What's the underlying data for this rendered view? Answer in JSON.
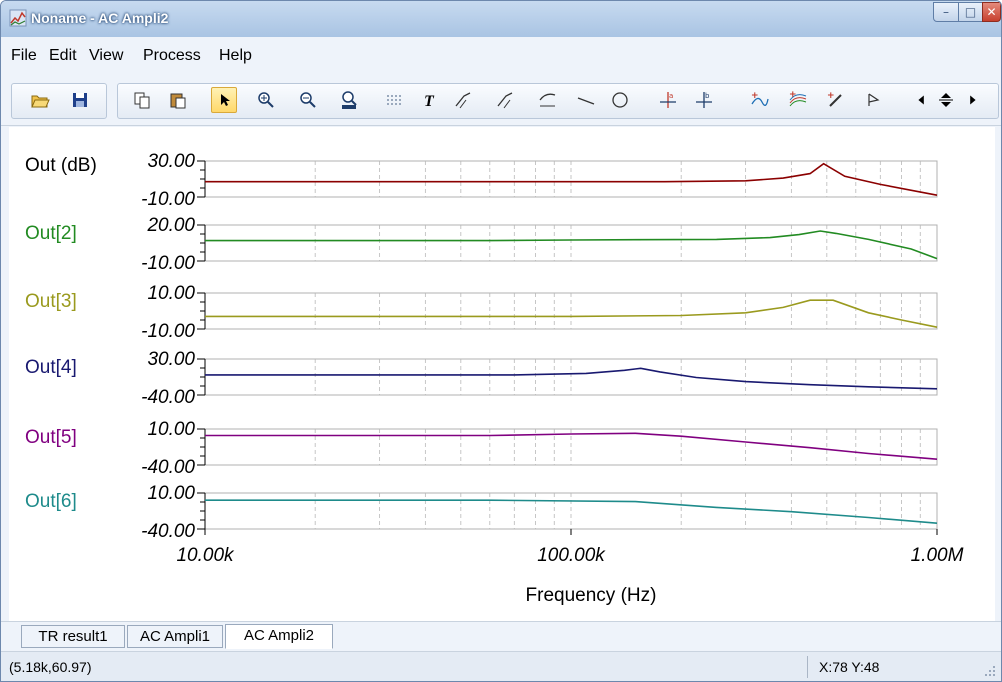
{
  "window": {
    "title": "Noname - AC Ampli2",
    "controls": {
      "minimize": "–",
      "maximize": "□",
      "close": "✕"
    }
  },
  "menu": [
    "File",
    "Edit",
    "View",
    "Process",
    "Help"
  ],
  "toolbar": {
    "buttons": [
      {
        "name": "open-icon"
      },
      {
        "name": "save-icon"
      },
      {
        "name": "copy-icon"
      },
      {
        "name": "paste-icon"
      },
      {
        "name": "select-arrow-icon",
        "active": true
      },
      {
        "name": "zoom-in-icon"
      },
      {
        "name": "zoom-out-icon"
      },
      {
        "name": "zoom-100-icon"
      },
      {
        "name": "grid-icon"
      },
      {
        "name": "text-icon"
      },
      {
        "name": "marker-1-icon"
      },
      {
        "name": "marker-2-icon"
      },
      {
        "name": "marker-3-icon"
      },
      {
        "name": "line-icon"
      },
      {
        "name": "circle-icon"
      },
      {
        "name": "cursor-a-icon"
      },
      {
        "name": "cursor-b-icon"
      },
      {
        "name": "add-trace-icon"
      },
      {
        "name": "add-traces-icon"
      },
      {
        "name": "pen-icon"
      },
      {
        "name": "flag-icon"
      },
      {
        "name": "scroll-left-icon"
      },
      {
        "name": "scroll-updown-icon"
      },
      {
        "name": "scroll-right-icon"
      }
    ]
  },
  "chart_data": {
    "type": "line",
    "xscale": "log",
    "xlim": [
      10000,
      1000000
    ],
    "xticks": [
      "10.00k",
      "100.00k",
      "1.00M"
    ],
    "xlabel": "Frequency (Hz)",
    "panels": [
      {
        "name": "Out (dB)",
        "color": "#8b0000",
        "ymax_label": "30.00",
        "ymin_label": "-10.00",
        "ylim": [
          -10,
          30
        ],
        "x": [
          10000,
          100000,
          180000,
          300000,
          380000,
          450000,
          490000,
          560000,
          700000,
          1000000
        ],
        "y": [
          7,
          7,
          7,
          8,
          11,
          16,
          27,
          13,
          4,
          -8
        ]
      },
      {
        "name": "Out[2]",
        "color": "#228b22",
        "ymax_label": "20.00",
        "ymin_label": "-10.00",
        "ylim": [
          -10,
          20
        ],
        "x": [
          10000,
          60000,
          100000,
          250000,
          350000,
          420000,
          480000,
          530000,
          650000,
          850000,
          1000000
        ],
        "y": [
          7,
          7,
          7.5,
          8,
          9.5,
          12,
          15,
          13,
          8,
          0,
          -8
        ]
      },
      {
        "name": "Out[3]",
        "color": "#9a9a1e",
        "ymax_label": "10.00",
        "ymin_label": "-10.00",
        "ylim": [
          -10,
          10
        ],
        "x": [
          10000,
          100000,
          200000,
          300000,
          380000,
          450000,
          520000,
          650000,
          800000,
          1000000
        ],
        "y": [
          -3,
          -3,
          -2.5,
          -1,
          2,
          6,
          6,
          -1,
          -5,
          -9
        ]
      },
      {
        "name": "Out[4]",
        "color": "#191970",
        "ymax_label": "30.00",
        "ymin_label": "-40.00",
        "ylim": [
          -40,
          30
        ],
        "x": [
          10000,
          70000,
          110000,
          140000,
          155000,
          175000,
          220000,
          300000,
          450000,
          650000,
          1000000
        ],
        "y": [
          -1,
          -1,
          2,
          8,
          12,
          5,
          -6,
          -14,
          -20,
          -24,
          -28
        ]
      },
      {
        "name": "Out[5]",
        "color": "#800080",
        "ymax_label": "10.00",
        "ymin_label": "-40.00",
        "ylim": [
          -40,
          10
        ],
        "x": [
          10000,
          60000,
          100000,
          150000,
          200000,
          300000,
          450000,
          650000,
          1000000
        ],
        "y": [
          1,
          1,
          3,
          4,
          0,
          -8,
          -16,
          -24,
          -32
        ]
      },
      {
        "name": "Out[6]",
        "color": "#1e8b8b",
        "ymax_label": "10.00",
        "ymin_label": "-40.00",
        "ylim": [
          -40,
          10
        ],
        "x": [
          10000,
          60000,
          150000,
          250000,
          400000,
          650000,
          1000000
        ],
        "y": [
          0,
          0,
          -2,
          -10,
          -16,
          -24,
          -32
        ]
      }
    ]
  },
  "tabs": [
    {
      "label": "TR result1",
      "active": false
    },
    {
      "label": "AC Ampli1",
      "active": false
    },
    {
      "label": "AC Ampli2",
      "active": true
    }
  ],
  "status": {
    "coords": "(5.18k,60.97)",
    "cursor": "X:78  Y:48"
  }
}
